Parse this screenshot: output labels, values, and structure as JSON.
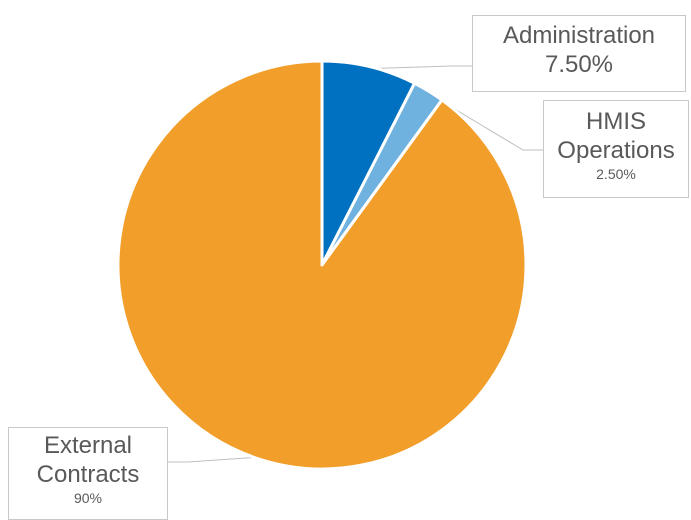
{
  "chart_data": {
    "type": "pie",
    "title": "",
    "slices": [
      {
        "label": "Administration",
        "value": 7.5,
        "display": "7.50%",
        "color": "#0070c0"
      },
      {
        "label": "HMIS Operations",
        "value": 2.5,
        "display": "2.50%",
        "color": "#6fb2e0"
      },
      {
        "label": "External Contracts",
        "value": 90,
        "display": "90%",
        "color": "#f29e2b"
      }
    ],
    "label_lines": {
      "admin_name": "Administration",
      "admin_pct": "7.50%",
      "hmis_name_1": "HMIS",
      "hmis_name_2": "Operations",
      "hmis_pct": "2.50%",
      "ext_name_1": "External",
      "ext_name_2": "Contracts",
      "ext_pct": "90%"
    },
    "start_angle": "12 o'clock",
    "direction": "clockwise",
    "legend": "none (data callouts)",
    "slice_border_color": "#ffffff"
  }
}
